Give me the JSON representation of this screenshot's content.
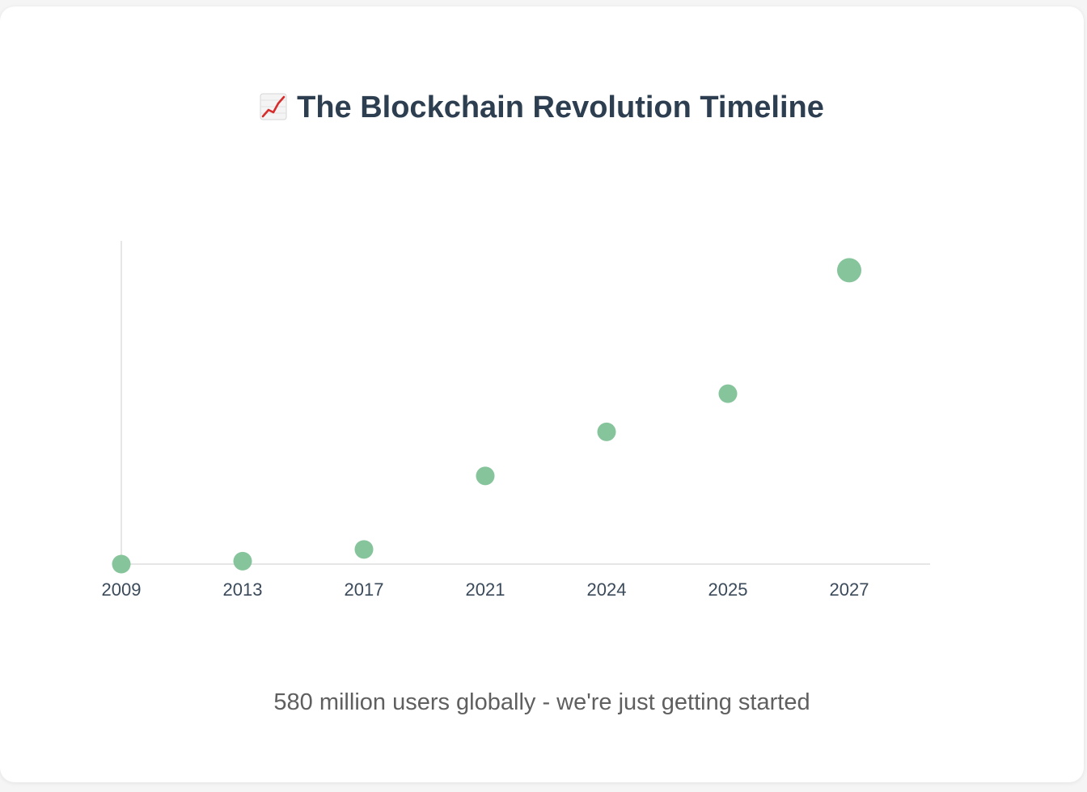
{
  "title": "The Blockchain Revolution Timeline",
  "title_icon": "chart-increasing-icon",
  "caption": "580 million users globally - we're just getting started",
  "colors": {
    "point": "#86c49b",
    "axis": "#e6e6e6",
    "title": "#2c3e50",
    "caption": "#5f5f5f"
  },
  "chart_data": {
    "type": "scatter",
    "title": "The Blockchain Revolution Timeline",
    "xlabel": "",
    "ylabel": "",
    "categories": [
      "2009",
      "2013",
      "2017",
      "2021",
      "2024",
      "2025",
      "2027"
    ],
    "values": [
      0,
      1,
      5,
      30,
      45,
      58,
      100
    ],
    "ylim": [
      0,
      110
    ],
    "grid": false,
    "legend": "none"
  }
}
